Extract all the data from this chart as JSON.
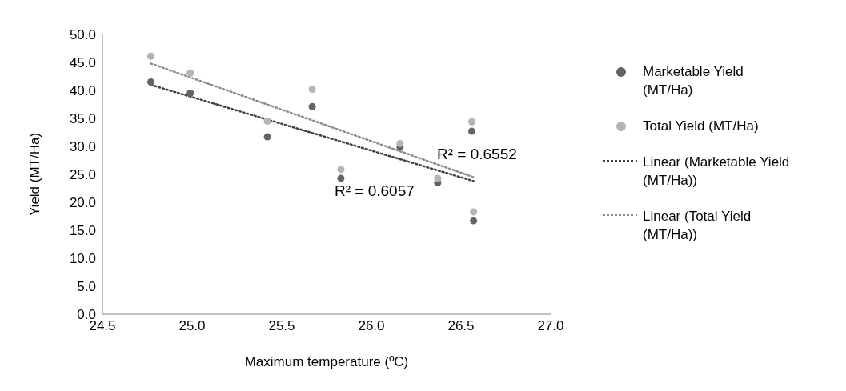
{
  "chart_data": {
    "type": "scatter",
    "xlabel": "Maximum temperature (ºC)",
    "ylabel": "Yield (MT/Ha)",
    "xlim": [
      24.5,
      27.0
    ],
    "xticks": [
      24.5,
      {
        "value": 25.0,
        "label": "25.0"
      },
      25.5,
      {
        "value": 26.0,
        "label": "26.0"
      },
      26.5,
      {
        "value": 27.0,
        "label": "27.0"
      }
    ],
    "ylim": [
      0,
      50
    ],
    "yticks": [
      {
        "value": 0,
        "label": "0.0"
      },
      {
        "value": 5,
        "label": "5.0"
      },
      {
        "value": 10,
        "label": "10.0"
      },
      {
        "value": 15,
        "label": "15.0"
      },
      {
        "value": 20,
        "label": "20.0"
      },
      {
        "value": 25,
        "label": "25.0"
      },
      {
        "value": 30,
        "label": "30.0"
      },
      {
        "value": 35,
        "label": "35.0"
      },
      {
        "value": 40,
        "label": "40.0"
      },
      {
        "value": 45,
        "label": "45.0"
      },
      {
        "value": 50,
        "label": "50.0"
      }
    ],
    "grid": false,
    "legend": "right",
    "series": [
      {
        "name": "Marketable Yield (MT/Ha)",
        "marker": "circle",
        "color": "#646464",
        "x": [
          24.77,
          24.99,
          25.42,
          25.67,
          25.83,
          26.16,
          26.37,
          26.56,
          26.57
        ],
        "values": [
          41.5,
          39.5,
          31.7,
          37.1,
          24.3,
          29.9,
          23.5,
          32.7,
          16.7
        ]
      },
      {
        "name": "Total Yield (MT/Ha)",
        "marker": "circle",
        "color": "#b4b4b4",
        "x": [
          24.77,
          24.99,
          25.42,
          25.67,
          25.83,
          26.16,
          26.37,
          26.56,
          26.57
        ],
        "values": [
          46.1,
          43.1,
          34.5,
          40.2,
          25.9,
          30.5,
          24.3,
          34.4,
          18.3
        ]
      },
      {
        "name": "Linear (Marketable Yield (MT/Ha))",
        "type": "line",
        "line_style": "dotted",
        "color": "#404040",
        "x": [
          24.77,
          26.57
        ],
        "values": [
          41.0,
          23.8
        ]
      },
      {
        "name": "Linear (Total Yield (MT/Ha))",
        "type": "line",
        "line_style": "dotted",
        "color": "#8c8c8c",
        "x": [
          24.77,
          26.57
        ],
        "values": [
          44.8,
          24.5
        ]
      }
    ],
    "annotations": [
      "R² = 0.6552",
      "R² = 0.6057"
    ]
  }
}
